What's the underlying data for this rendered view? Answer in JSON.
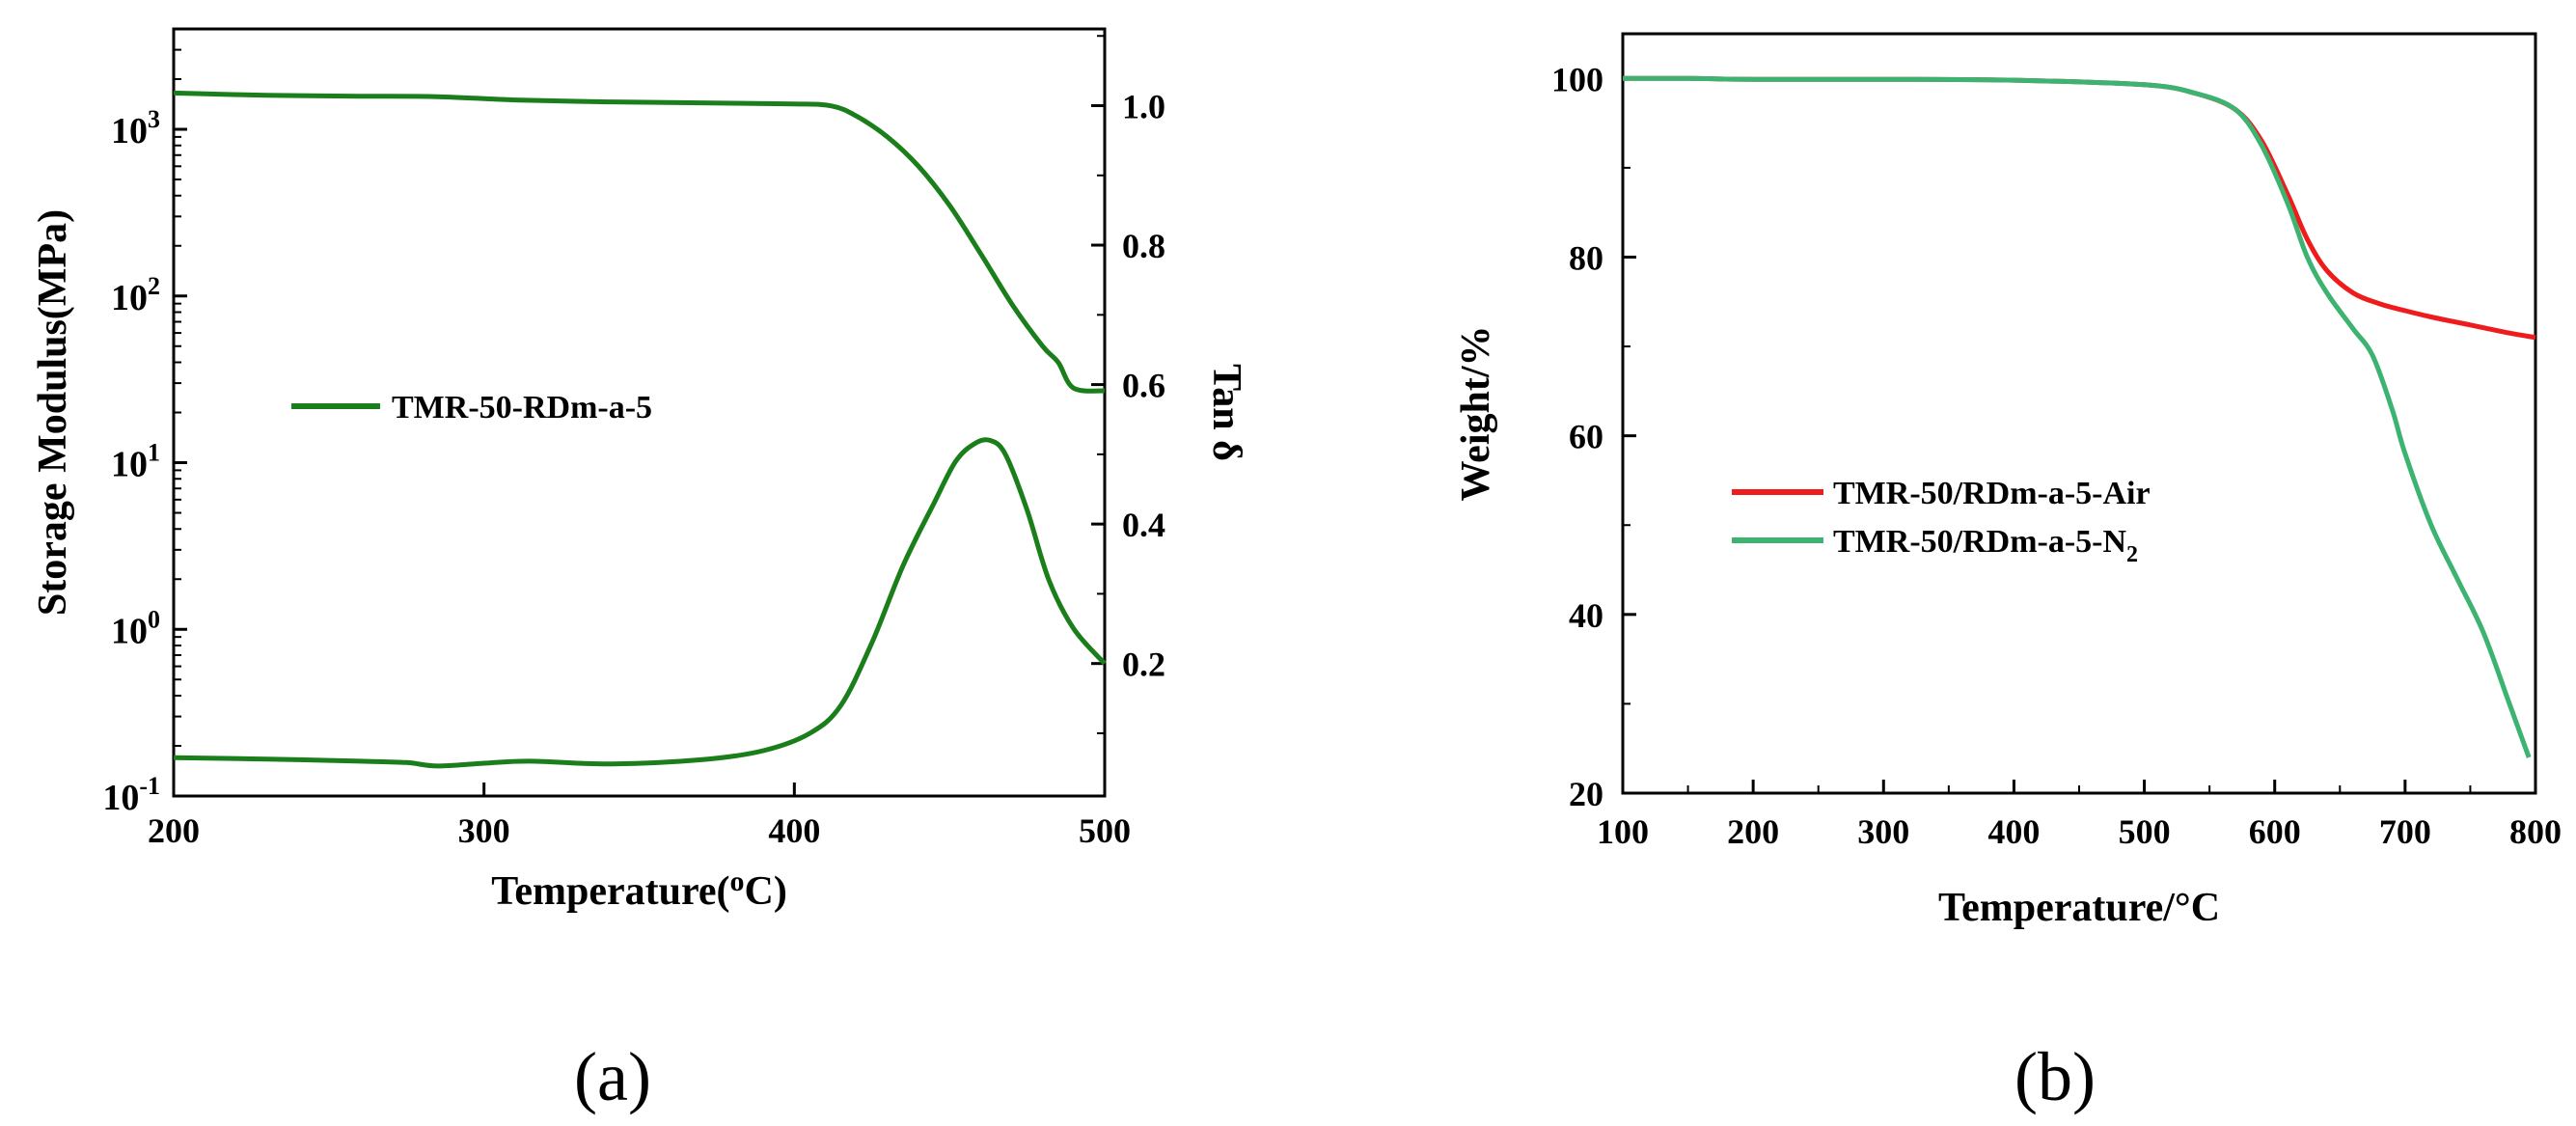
{
  "chart_data": [
    {
      "type": "line",
      "panel_label": "(a)",
      "xlabel": "Temperature(",
      "xlabel_sup": "o",
      "xlabel_end": "C)",
      "ylabel": "Storage Modulus(MPa)",
      "y2label": "Tan δ",
      "xlim": [
        200,
        500
      ],
      "ylim": [
        0.1,
        4000
      ],
      "yscale": "log",
      "y2lim": [
        0.01,
        1.11
      ],
      "x_ticks": [
        "200",
        "300",
        "400",
        "500"
      ],
      "y_ticks": [
        {
          "base": "10",
          "exp": "-1",
          "value": 0.1
        },
        {
          "base": "10",
          "exp": "0",
          "value": 1
        },
        {
          "base": "10",
          "exp": "1",
          "value": 10
        },
        {
          "base": "10",
          "exp": "2",
          "value": 100
        },
        {
          "base": "10",
          "exp": "3",
          "value": 1000
        }
      ],
      "y2_ticks": [
        "0.2",
        "0.4",
        "0.6",
        "0.8",
        "1.0"
      ],
      "legend": [
        {
          "label": "TMR-50-RDm-a-5",
          "color": "#1a7f1a"
        }
      ],
      "series": [
        {
          "name": "Storage Modulus",
          "axis": "left",
          "color": "#1a7f1a",
          "x": [
            200,
            230,
            260,
            285,
            310,
            340,
            370,
            400,
            412,
            420,
            430,
            440,
            450,
            460,
            470,
            480,
            485,
            490,
            500
          ],
          "y": [
            1650,
            1600,
            1580,
            1570,
            1500,
            1460,
            1440,
            1420,
            1380,
            1200,
            900,
            600,
            350,
            180,
            90,
            50,
            40,
            28,
            27
          ]
        },
        {
          "name": "Tan δ",
          "axis": "right",
          "color": "#1a7f1a",
          "x": [
            200,
            230,
            260,
            275,
            285,
            300,
            315,
            340,
            370,
            390,
            405,
            415,
            425,
            435,
            445,
            452,
            458,
            463,
            468,
            475,
            482,
            490,
            500
          ],
          "y": [
            0.065,
            0.063,
            0.06,
            0.058,
            0.053,
            0.057,
            0.06,
            0.056,
            0.062,
            0.075,
            0.1,
            0.14,
            0.23,
            0.34,
            0.43,
            0.49,
            0.515,
            0.52,
            0.5,
            0.42,
            0.32,
            0.25,
            0.2
          ]
        }
      ]
    },
    {
      "type": "line",
      "panel_label": "(b)",
      "xlabel": "Temperature/°C",
      "ylabel": "Weight/%",
      "xlim": [
        100,
        800
      ],
      "ylim": [
        20,
        105
      ],
      "x_ticks": [
        "100",
        "200",
        "300",
        "400",
        "500",
        "600",
        "700",
        "800"
      ],
      "y_ticks": [
        "20",
        "40",
        "60",
        "80",
        "100"
      ],
      "legend": [
        {
          "label": "TMR-50/RDm-a-5-Air",
          "color": "#ee1c1c"
        },
        {
          "label": "TMR-50/RDm-a-5-N",
          "sub": "2",
          "color": "#3cb371"
        }
      ],
      "series": [
        {
          "name": "TMR-50/RDm-a-5-Air",
          "color": "#ee1c1c",
          "x": [
            100,
            150,
            200,
            300,
            400,
            500,
            540,
            570,
            590,
            610,
            625,
            640,
            660,
            680,
            700,
            720,
            750,
            780,
            800
          ],
          "y": [
            100,
            100,
            99.9,
            99.9,
            99.8,
            99.3,
            98.3,
            96.5,
            93,
            87,
            82,
            78.5,
            76,
            74.8,
            74,
            73.3,
            72.4,
            71.5,
            71
          ]
        },
        {
          "name": "TMR-50/RDm-a-5-N2",
          "color": "#3cb371",
          "x": [
            100,
            150,
            200,
            300,
            400,
            500,
            540,
            570,
            590,
            610,
            625,
            640,
            660,
            675,
            690,
            700,
            720,
            740,
            760,
            780,
            795
          ],
          "y": [
            100,
            100,
            99.9,
            99.9,
            99.8,
            99.3,
            98.3,
            96.5,
            92.5,
            86,
            80,
            76,
            72,
            69,
            63,
            58,
            50,
            44,
            38,
            30,
            24
          ]
        }
      ]
    }
  ]
}
